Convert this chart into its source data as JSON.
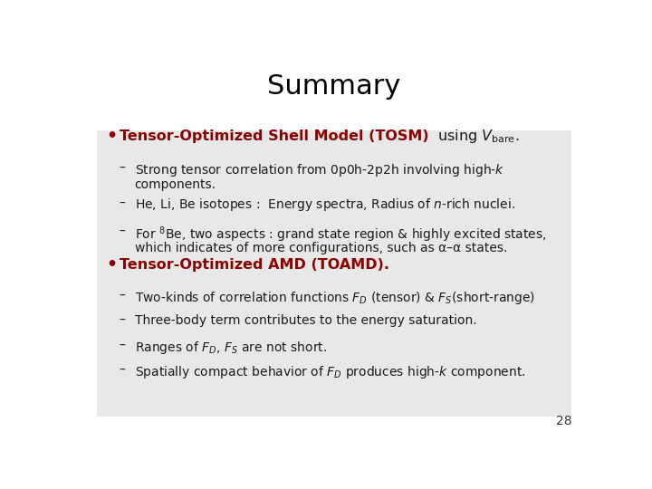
{
  "title": "Summary",
  "title_fontsize": 22,
  "title_color": "#000000",
  "background_color": "#ffffff",
  "panel_color": "#e8e8e8",
  "page_number": "28",
  "bullet1_bold": "Tensor-Optimized Shell Model (TOSM)",
  "bullet1_color": "#8b0000",
  "bullet2_bold": "Tensor-Optimized AMD (TOAMD).",
  "bullet2_color": "#8b0000",
  "text_color": "#1a1a1a",
  "fs_bullet": 11.5,
  "fs_sub": 10.0,
  "fs_title": 22
}
